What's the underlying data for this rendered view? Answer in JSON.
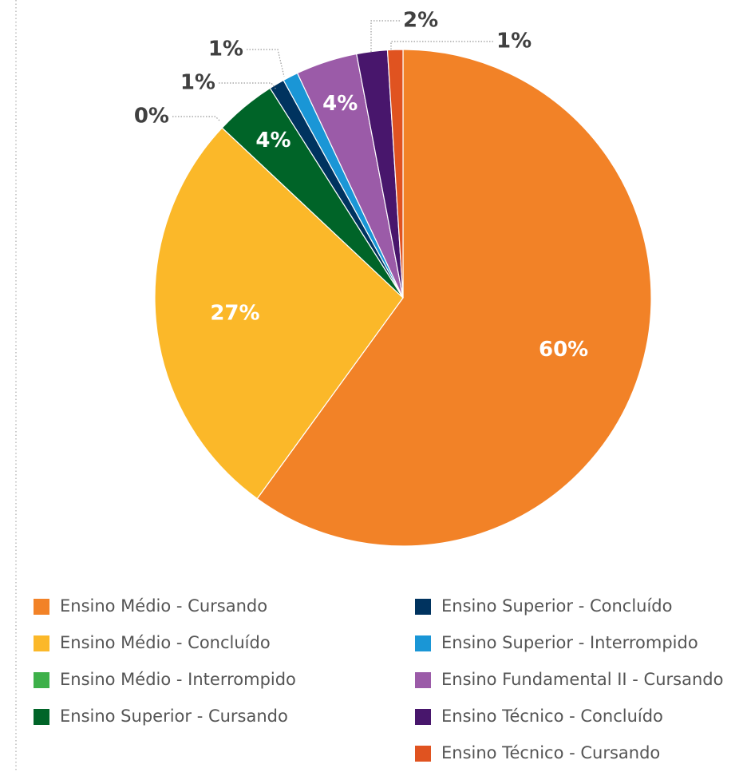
{
  "chart_data": {
    "type": "pie",
    "categories": [
      "Ensino Médio - Cursando",
      "Ensino Médio - Concluído",
      "Ensino Médio - Interrompido",
      "Ensino Superior - Cursando",
      "Ensino Superior - Concluído",
      "Ensino Superior - Interrompido",
      "Ensino Fundamental II - Cursando",
      "Ensino Técnico - Concluído",
      "Ensino Técnico - Cursando"
    ],
    "values": [
      60,
      27,
      0,
      4,
      1,
      1,
      4,
      2,
      1
    ],
    "value_labels": [
      "60%",
      "27%",
      "0%",
      "4%",
      "1%",
      "1%",
      "4%",
      "2%",
      "1%"
    ],
    "colors": [
      "#f28227",
      "#fbb829",
      "#3db049",
      "#006428",
      "#00335f",
      "#1a96d6",
      "#9b5ba8",
      "#48166c",
      "#e05320"
    ],
    "legend": "bottom"
  }
}
